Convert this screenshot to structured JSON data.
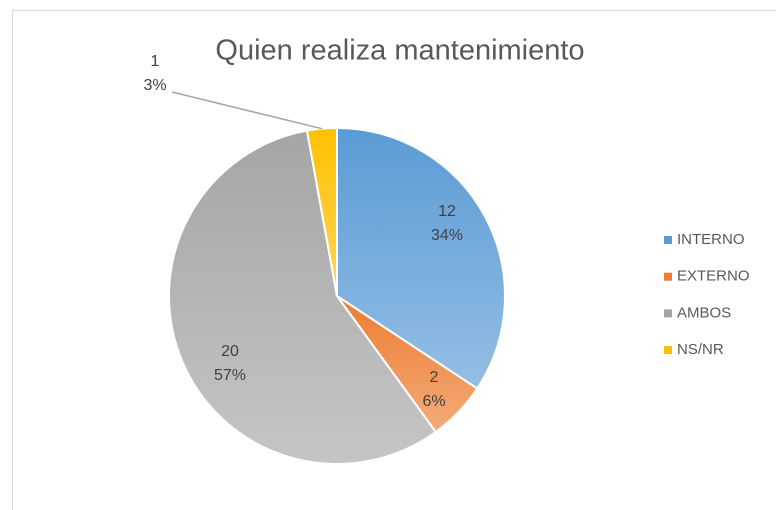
{
  "chart_data": {
    "type": "pie",
    "title": "Quien realiza mantenimiento",
    "categories": [
      "INTERNO",
      "EXTERNO",
      "AMBOS",
      "NS/NR"
    ],
    "values": [
      12,
      2,
      20,
      1
    ],
    "percent_labels": [
      "34%",
      "6%",
      "57%",
      "3%"
    ],
    "colors": [
      "#5b9bd5",
      "#ed7d31",
      "#a5a5a5",
      "#ffc000"
    ],
    "legend": "right"
  }
}
